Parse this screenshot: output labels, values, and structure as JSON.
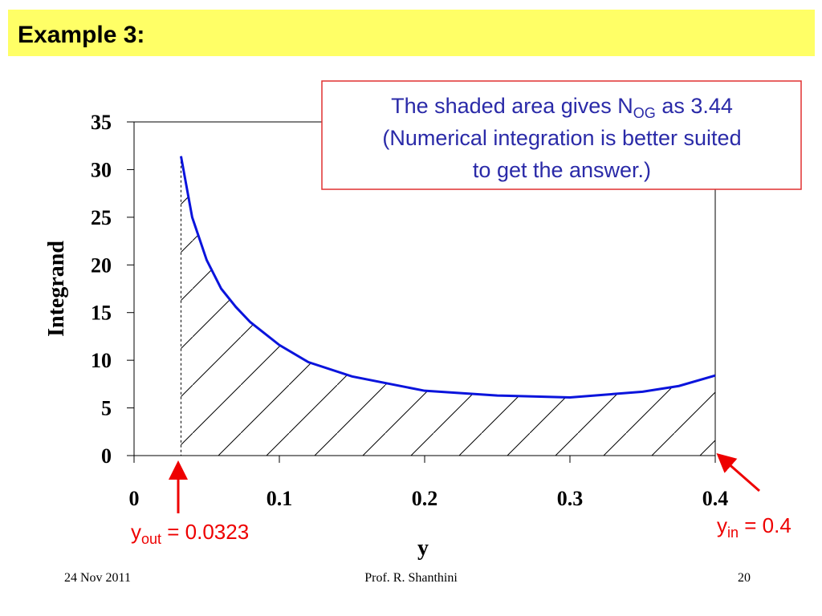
{
  "header": {
    "title": "Example 3:"
  },
  "chart_data": {
    "type": "line",
    "x": [
      0.0323,
      0.04,
      0.05,
      0.06,
      0.07,
      0.08,
      0.1,
      0.12,
      0.15,
      0.2,
      0.25,
      0.3,
      0.35,
      0.375,
      0.4
    ],
    "values": [
      31.4,
      25,
      20.5,
      17.5,
      15.6,
      14,
      11.6,
      9.8,
      8.3,
      6.8,
      6.3,
      6.1,
      6.7,
      7.3,
      8.4
    ],
    "color": "#0a14dc",
    "xlim": [
      0,
      0.4
    ],
    "ylim": [
      0,
      35
    ],
    "xticks": [
      0,
      0.1,
      0.2,
      0.3,
      0.4
    ],
    "yticks": [
      0,
      5,
      10,
      15,
      20,
      25,
      30,
      35
    ],
    "x_label": "y",
    "y_label": "Integrand",
    "grid": false,
    "shaded": true,
    "annotations": {
      "y_out": {
        "base": "y",
        "sub": "out",
        "rest": " = 0.0323"
      },
      "y_in": {
        "base": "y",
        "sub": "in",
        "rest": " = 0.4"
      },
      "note": {
        "line1_pre": "The shaded area gives N",
        "line1_sub": "OG",
        "line1_post": " as 3.44",
        "line2": "(Numerical integration is better suited",
        "line3": "to get the answer.)"
      }
    }
  },
  "footer": {
    "date": "24 Nov 2011",
    "author": "Prof. R. Shanthini",
    "page": "20"
  }
}
